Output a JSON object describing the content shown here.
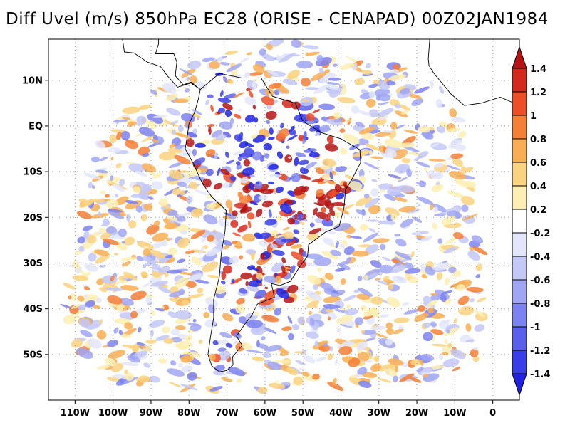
{
  "title": "Diff Uvel (m/s) 850hPa EC28 (ORISE - CENAPAD) 00Z02JAN1984",
  "colors": {
    "background": "#ffffff",
    "frame": "#000000",
    "grid": "#999999",
    "coast": "#000000"
  },
  "map": {
    "lon_range": [
      -117,
      7
    ],
    "lat_range": [
      -60,
      19
    ],
    "grid_style": "dotted",
    "lat_labels": [
      {
        "value": 10,
        "label": "10N"
      },
      {
        "value": 0,
        "label": "EQ"
      },
      {
        "value": -10,
        "label": "10S"
      },
      {
        "value": -20,
        "label": "20S"
      },
      {
        "value": -30,
        "label": "30S"
      },
      {
        "value": -40,
        "label": "40S"
      },
      {
        "value": -50,
        "label": "50S"
      }
    ],
    "lon_labels": [
      {
        "value": -110,
        "label": "110W"
      },
      {
        "value": -100,
        "label": "100W"
      },
      {
        "value": -90,
        "label": "90W"
      },
      {
        "value": -80,
        "label": "80W"
      },
      {
        "value": -70,
        "label": "70W"
      },
      {
        "value": -60,
        "label": "60W"
      },
      {
        "value": -50,
        "label": "50W"
      },
      {
        "value": -40,
        "label": "40W"
      },
      {
        "value": -30,
        "label": "30W"
      },
      {
        "value": -20,
        "label": "20W"
      },
      {
        "value": -10,
        "label": "10W"
      },
      {
        "value": 0,
        "label": "0"
      }
    ],
    "domain_outline": [
      [
        -97,
        3
      ],
      [
        -83,
        12
      ],
      [
        -71,
        16
      ],
      [
        -57,
        19
      ],
      [
        -43,
        17
      ],
      [
        -30,
        14
      ],
      [
        -22,
        13
      ],
      [
        -15,
        11
      ],
      [
        -11,
        6
      ],
      [
        -7,
        -3
      ],
      [
        -4,
        -20
      ],
      [
        -2,
        -40
      ],
      [
        -4,
        -53
      ],
      [
        -20,
        -56
      ],
      [
        -40,
        -57
      ],
      [
        -60,
        -58
      ],
      [
        -80,
        -58
      ],
      [
        -100,
        -56
      ],
      [
        -113,
        -50
      ],
      [
        -112,
        -35
      ],
      [
        -108,
        -15
      ],
      [
        -103,
        -3
      ]
    ],
    "continent": [
      [
        -77,
        8
      ],
      [
        -72,
        11.5
      ],
      [
        -66,
        10.5
      ],
      [
        -61,
        10.5
      ],
      [
        -58,
        6.5
      ],
      [
        -52,
        5
      ],
      [
        -50,
        1
      ],
      [
        -45,
        -1.5
      ],
      [
        -40,
        -2.8
      ],
      [
        -35,
        -5.2
      ],
      [
        -34.8,
        -8
      ],
      [
        -37,
        -11.5
      ],
      [
        -38.8,
        -14
      ],
      [
        -39.2,
        -18
      ],
      [
        -40.5,
        -22
      ],
      [
        -44,
        -23.2
      ],
      [
        -48.5,
        -26
      ],
      [
        -48.8,
        -28.5
      ],
      [
        -51,
        -31
      ],
      [
        -53.3,
        -34
      ],
      [
        -56,
        -34.9
      ],
      [
        -58.3,
        -34.5
      ],
      [
        -57.5,
        -37.5
      ],
      [
        -62,
        -39
      ],
      [
        -63.5,
        -41.5
      ],
      [
        -65,
        -43
      ],
      [
        -67.5,
        -46
      ],
      [
        -66,
        -48
      ],
      [
        -68.5,
        -50.5
      ],
      [
        -68.4,
        -52.3
      ],
      [
        -70,
        -53.5
      ],
      [
        -72,
        -53.8
      ],
      [
        -74,
        -52.5
      ],
      [
        -75,
        -50
      ],
      [
        -74.3,
        -46
      ],
      [
        -73.5,
        -42
      ],
      [
        -73.5,
        -38
      ],
      [
        -72,
        -33
      ],
      [
        -71.5,
        -28
      ],
      [
        -70.5,
        -23
      ],
      [
        -70.2,
        -18.5
      ],
      [
        -74,
        -15.5
      ],
      [
        -76.5,
        -12.5
      ],
      [
        -79,
        -8
      ],
      [
        -81,
        -5
      ],
      [
        -80.5,
        -2.5
      ],
      [
        -80,
        0.5
      ],
      [
        -78.5,
        3
      ],
      [
        -77.5,
        6
      ],
      [
        -77,
        8
      ]
    ],
    "central_america": [
      [
        -77,
        8
      ],
      [
        -79.5,
        9.4
      ],
      [
        -83,
        8.5
      ],
      [
        -85.7,
        11
      ],
      [
        -87.5,
        13
      ],
      [
        -91,
        14
      ],
      [
        -94.5,
        16
      ],
      [
        -97,
        16.2
      ],
      [
        -97.5,
        19
      ],
      [
        -92,
        19
      ],
      [
        -90.5,
        21
      ],
      [
        -88,
        21.5
      ],
      [
        -88,
        18
      ],
      [
        -88.8,
        15.8
      ],
      [
        -84,
        15.8
      ],
      [
        -83.2,
        14
      ],
      [
        -83.6,
        11
      ],
      [
        -81.5,
        9
      ],
      [
        -79.5,
        9.6
      ],
      [
        -77,
        8
      ]
    ],
    "africa": [
      [
        -17,
        14.7
      ],
      [
        -16.8,
        13.2
      ],
      [
        -15.5,
        11.5
      ],
      [
        -13.5,
        9.5
      ],
      [
        -11,
        7
      ],
      [
        -7.5,
        4.5
      ],
      [
        -3,
        5
      ],
      [
        2,
        6.3
      ],
      [
        7,
        4.5
      ],
      [
        9,
        3
      ],
      [
        9,
        -1
      ],
      [
        12,
        -6
      ],
      [
        12,
        -18
      ],
      [
        20,
        -18
      ],
      [
        20,
        20
      ],
      [
        -16.5,
        20
      ],
      [
        -17,
        14.7
      ]
    ],
    "colorbar": {
      "levels": [
        "1.4",
        "1.2",
        "1",
        "0.8",
        "0.6",
        "0.4",
        "0.2",
        "-0.2",
        "-0.4",
        "-0.6",
        "-0.8",
        "-1",
        "-1.2",
        "-1.4"
      ],
      "colors": [
        "#b51414",
        "#d42a1d",
        "#ec4e25",
        "#f57f35",
        "#f9ae55",
        "#fbd27f",
        "#fdeeb3",
        "#ffffff",
        "#e3e5fb",
        "#c3c8f7",
        "#a0a6f3",
        "#7c82ef",
        "#5a5fec",
        "#3a3ee8",
        "#1f22e0"
      ]
    }
  }
}
